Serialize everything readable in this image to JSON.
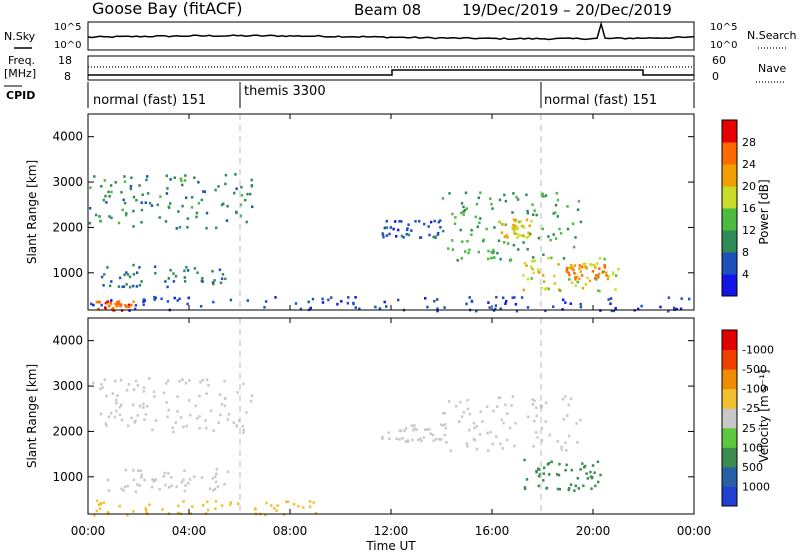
{
  "header": {
    "station": "Goose Bay (fitACF)",
    "beam": "Beam 08",
    "date_range": "19/Dec/2019 – 20/Dec/2019"
  },
  "sky_panel": {
    "left_label": "N.Sky",
    "right_label": "N.Search",
    "tick_top": "10^5",
    "tick_bottom": "10^0"
  },
  "freq_panel": {
    "left_label_1": "Freq.",
    "left_label_2": "[MHz]",
    "tick_top_left": "18",
    "tick_bottom_left": "8",
    "right_label": "Nave",
    "tick_top_right": "60",
    "tick_bottom_right": "0"
  },
  "cpid": {
    "label": "CPID",
    "segments": [
      {
        "start": 0,
        "end": 6,
        "text": "normal (fast) 151"
      },
      {
        "start": 6,
        "end": 18,
        "text": "themis 3300"
      },
      {
        "start": 18,
        "end": 24,
        "text": "normal (fast) 151"
      }
    ]
  },
  "x_axis": {
    "label": "Time UT",
    "ticks": [
      "00:00",
      "04:00",
      "08:00",
      "12:00",
      "16:00",
      "20:00",
      "00:00"
    ]
  },
  "colorbars": {
    "power": {
      "label": "Power [dB]",
      "ticks": [
        "4",
        "8",
        "12",
        "16",
        "20",
        "24",
        "28"
      ],
      "colors": [
        "#1414e6",
        "#1e50be",
        "#2e8b57",
        "#4cbb3f",
        "#c8dc28",
        "#f0a000",
        "#ff6a00",
        "#e60000"
      ]
    },
    "velocity": {
      "label": "Velocity [m s⁻¹]",
      "ticks": [
        "1000",
        "500",
        "100",
        "25",
        "-25",
        "-100",
        "-500",
        "-1000"
      ],
      "colors": [
        "#2040d0",
        "#2860a8",
        "#3c8c50",
        "#5cc840",
        "#c8c8c8",
        "#f0c030",
        "#f08c00",
        "#f04000",
        "#e00000"
      ]
    }
  },
  "chart_data": [
    {
      "type": "heatmap",
      "title": "Power",
      "ylabel": "Slant Range [km]",
      "xlabel": "Time UT",
      "xlim": [
        0,
        24
      ],
      "ylim": [
        180,
        4500
      ],
      "yticks": [
        1000,
        2000,
        3000,
        4000
      ],
      "color_label": "Power [dB]",
      "color_ticks": [
        4,
        8,
        12,
        16,
        20,
        24,
        28
      ],
      "echo_regions": [
        {
          "t_start": 0.0,
          "t_end": 6.5,
          "r_min": 2000,
          "r_max": 3200,
          "power_db": 10
        },
        {
          "t_start": 0.5,
          "t_end": 5.5,
          "r_min": 700,
          "r_max": 1200,
          "power_db": 9
        },
        {
          "t_start": 0.3,
          "t_end": 1.8,
          "r_min": 180,
          "r_max": 400,
          "power_db": 26
        },
        {
          "t_start": 11.6,
          "t_end": 14.0,
          "r_min": 1800,
          "r_max": 2200,
          "power_db": 6
        },
        {
          "t_start": 14.0,
          "t_end": 19.5,
          "r_min": 1300,
          "r_max": 2800,
          "power_db": 12
        },
        {
          "t_start": 16.2,
          "t_end": 17.6,
          "r_min": 1800,
          "r_max": 2200,
          "power_db": 20
        },
        {
          "t_start": 17.2,
          "t_end": 21.0,
          "r_min": 600,
          "r_max": 1400,
          "power_db": 18
        },
        {
          "t_start": 18.8,
          "t_end": 20.5,
          "r_min": 850,
          "r_max": 1200,
          "power_db": 24
        },
        {
          "t_start": 0.0,
          "t_end": 24.0,
          "r_min": 180,
          "r_max": 500,
          "power_db": 5
        }
      ]
    },
    {
      "type": "heatmap",
      "title": "Velocity",
      "ylabel": "Slant Range [km]",
      "xlabel": "Time UT",
      "xlim": [
        0,
        24
      ],
      "ylim": [
        180,
        4500
      ],
      "yticks": [
        1000,
        2000,
        3000,
        4000
      ],
      "color_label": "Velocity [m s⁻¹]",
      "color_ticks": [
        1000,
        500,
        100,
        25,
        -25,
        -100,
        -500,
        -1000
      ],
      "echo_regions": [
        {
          "t_start": 0.0,
          "t_end": 6.5,
          "r_min": 2000,
          "r_max": 3200,
          "velocity": 0
        },
        {
          "t_start": 0.5,
          "t_end": 5.5,
          "r_min": 700,
          "r_max": 1200,
          "velocity": 0
        },
        {
          "t_start": 11.6,
          "t_end": 14.0,
          "r_min": 1800,
          "r_max": 2200,
          "velocity": 0
        },
        {
          "t_start": 14.0,
          "t_end": 19.5,
          "r_min": 1600,
          "r_max": 2800,
          "velocity": 0
        },
        {
          "t_start": 17.0,
          "t_end": 20.5,
          "r_min": 700,
          "r_max": 1400,
          "velocity": 150
        },
        {
          "t_start": 0.0,
          "t_end": 9.0,
          "r_min": 180,
          "r_max": 500,
          "velocity": -80
        }
      ]
    }
  ]
}
